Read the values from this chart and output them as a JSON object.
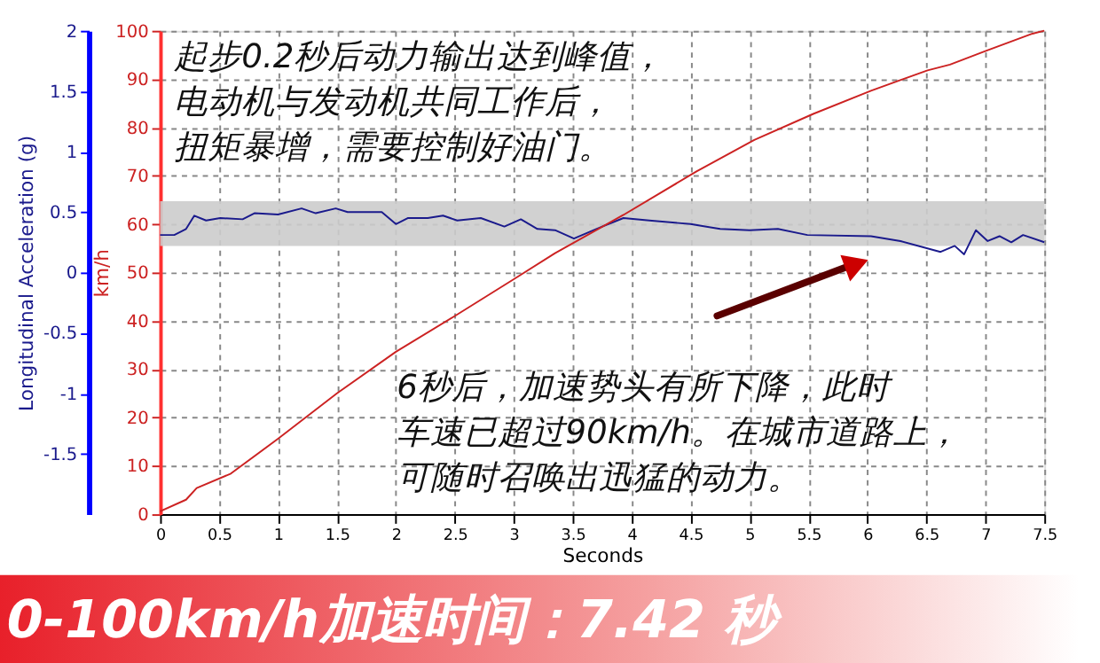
{
  "chart_data": {
    "type": "line",
    "title": "0-100km/h加速时间：7.42 秒",
    "xlabel": "Seconds",
    "ylabel": "km/h",
    "y2label": "Longitudinal Acceleration (g)",
    "xlim": [
      0,
      7.5
    ],
    "xticks": [
      0,
      0.5,
      1,
      1.5,
      2,
      2.5,
      3,
      3.5,
      4,
      4.5,
      5,
      5.5,
      6,
      6.5,
      7,
      7.5
    ],
    "ylim": [
      0,
      100
    ],
    "yticks": [
      0,
      10,
      20,
      30,
      40,
      50,
      60,
      70,
      80,
      90,
      100
    ],
    "y2lim": [
      -2,
      2
    ],
    "y2ticks": [
      -1.5,
      -1,
      -0.5,
      0,
      0.5,
      1,
      1.5,
      2
    ],
    "grid": true,
    "line_style": "solid",
    "marker": "none",
    "bands": [
      {
        "axis": "y2",
        "from": 0.22,
        "to": 0.59,
        "color": "#cccccc"
      }
    ],
    "annotations": [
      "起步0.2秒后动力输出达到峰值，",
      "电动机与发动机共同工作后，",
      "扭矩暴增，需要控制好油门。",
      "6秒后，加速势头有所下降，此时",
      "车速已超过90km/h。在城市道路上，",
      "可随时召唤出迅猛的动力。"
    ],
    "series": [
      {
        "color": "#cc2222",
        "x": [
          0,
          0.22,
          0.31,
          0.6,
          1,
          1.5,
          2,
          2.5,
          3,
          3.35,
          3.93,
          4.55,
          5.04,
          5.54,
          6.03,
          6.51,
          6.7,
          7.0,
          7.4,
          7.5
        ],
        "values": [
          0.6,
          3,
          5.4,
          8.4,
          15.6,
          25,
          33.6,
          41,
          48.6,
          54,
          61.9,
          70.9,
          77.4,
          82.8,
          87.6,
          91.8,
          93,
          95.8,
          99.4,
          100
        ]
      },
      {
        "color": "#1a1a8c",
        "axis": "y2",
        "x": [
          0,
          0.12,
          0.22,
          0.29,
          0.39,
          0.51,
          0.7,
          0.8,
          1,
          1.2,
          1.32,
          1.49,
          1.59,
          1.88,
          2.0,
          2.1,
          2.27,
          2.4,
          2.52,
          2.72,
          2.92,
          3.06,
          3.2,
          3.35,
          3.51,
          3.7,
          3.93,
          4.15,
          4.5,
          4.75,
          5,
          5.24,
          5.49,
          6.03,
          6.28,
          6.62,
          6.74,
          6.82,
          6.92,
          7.02,
          7.12,
          7.22,
          7.32,
          7.5
        ],
        "values": [
          0.31,
          0.31,
          0.36,
          0.47,
          0.43,
          0.45,
          0.44,
          0.49,
          0.48,
          0.53,
          0.49,
          0.53,
          0.5,
          0.5,
          0.4,
          0.45,
          0.45,
          0.47,
          0.43,
          0.45,
          0.38,
          0.44,
          0.36,
          0.35,
          0.28,
          0.36,
          0.45,
          0.43,
          0.4,
          0.36,
          0.35,
          0.36,
          0.31,
          0.3,
          0.26,
          0.17,
          0.22,
          0.15,
          0.35,
          0.26,
          0.3,
          0.25,
          0.31,
          0.25
        ]
      }
    ]
  }
}
